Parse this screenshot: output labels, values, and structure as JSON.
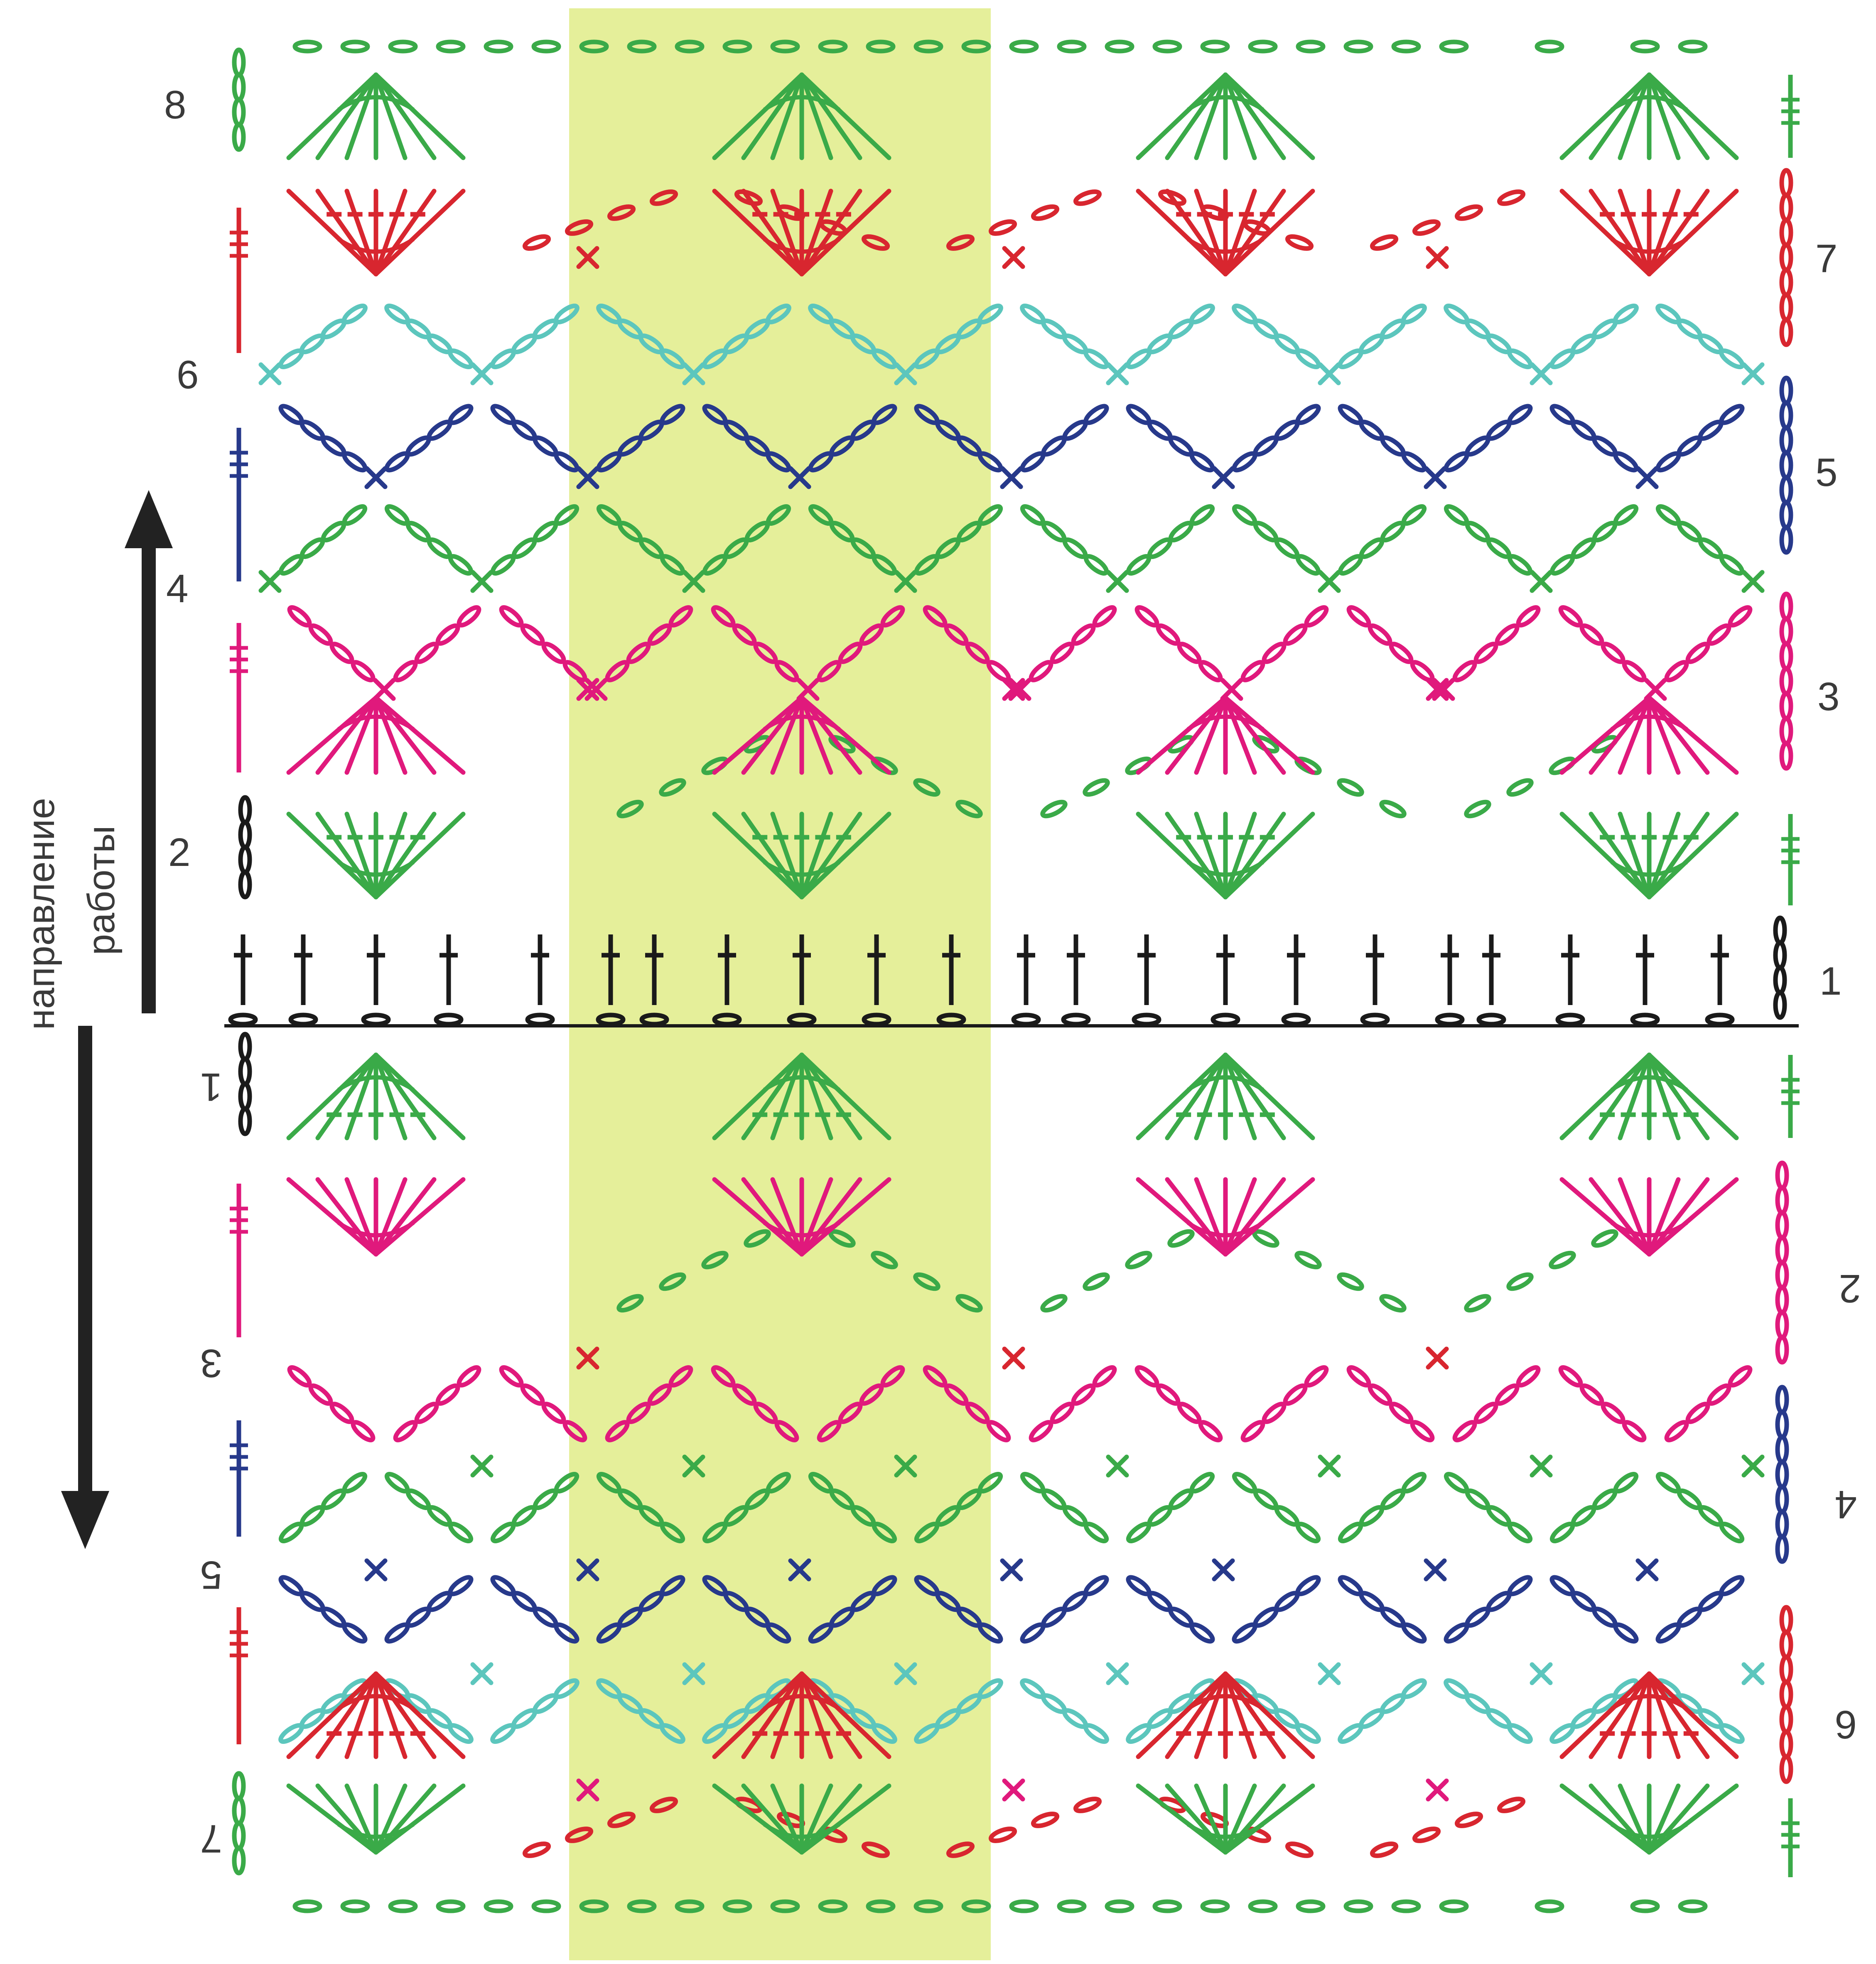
{
  "direction_label": {
    "line1": "направление",
    "line2": "работы"
  },
  "row_labels_top": {
    "left": [
      "8",
      "6",
      "4",
      "2"
    ],
    "right": [
      "7",
      "5",
      "3",
      "1"
    ]
  },
  "row_labels_bottom_upside_down": {
    "left": [
      "1",
      "3",
      "5",
      "7"
    ],
    "right": [
      "2",
      "4",
      "6"
    ]
  },
  "colors": {
    "green": "#3aaa48",
    "red": "#d8262f",
    "cyan": "#5cc6bd",
    "navy": "#27398b",
    "magenta": "#e0197c",
    "black": "#1a1a1a",
    "highlight": "#e5ef9a",
    "arrow": "#222222"
  },
  "symbols": [
    "chain-stitch",
    "single-crochet-x",
    "double-crochet",
    "treble-crochet",
    "fan"
  ]
}
